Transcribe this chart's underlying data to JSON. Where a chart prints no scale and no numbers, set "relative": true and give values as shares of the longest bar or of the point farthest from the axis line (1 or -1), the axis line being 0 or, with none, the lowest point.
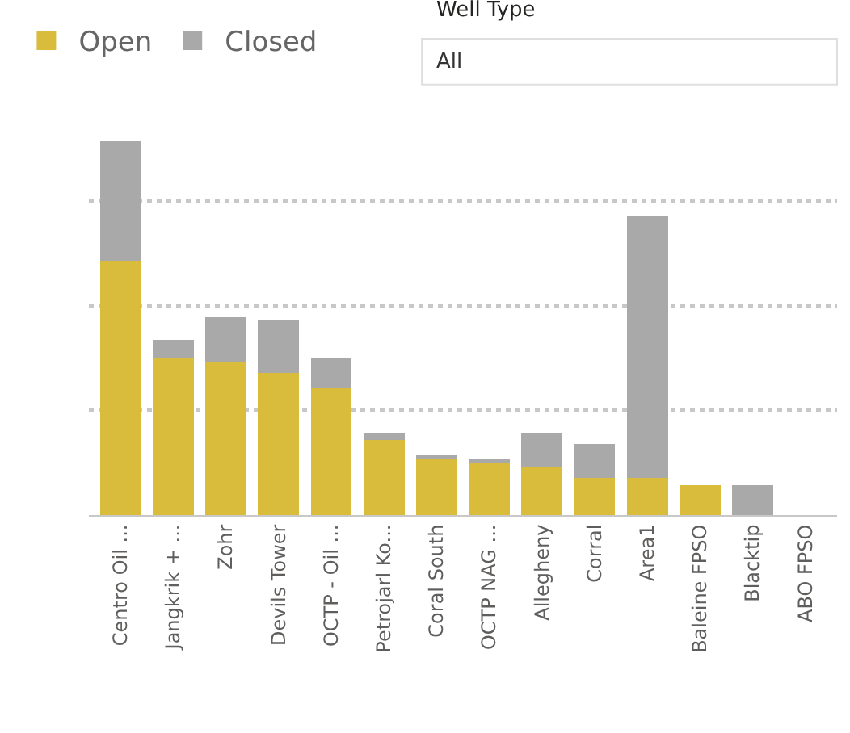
{
  "chart_data": {
    "type": "bar",
    "stacked": true,
    "relative": true,
    "legend": "top left",
    "grid": "y",
    "annotations": [
      "Well Type",
      "All"
    ],
    "categories": [
      "Centro Oil ...",
      "Jangkrik + ...",
      "Zohr",
      "Devils Tower",
      "OCTP - Oil ...",
      "Petrojarl Ko...",
      "Coral South",
      "OCTP NAG ...",
      "Allegheny",
      "Corral",
      "Area1",
      "Baleine FPSO",
      "Blacktip",
      "ABO FPSO"
    ],
    "series": [
      {
        "name": "Open",
        "color": "#d9bc3c",
        "values": [
          0.68,
          0.42,
          0.41,
          0.38,
          0.34,
          0.2,
          0.15,
          0.14,
          0.13,
          0.1,
          0.1,
          0.08,
          0,
          0
        ]
      },
      {
        "name": "Closed",
        "color": "#a9a9a9",
        "values": [
          0.32,
          0.05,
          0.12,
          0.14,
          0.08,
          0.02,
          0.01,
          0.01,
          0.09,
          0.09,
          0.7,
          0,
          0.08,
          0
        ]
      }
    ]
  }
}
